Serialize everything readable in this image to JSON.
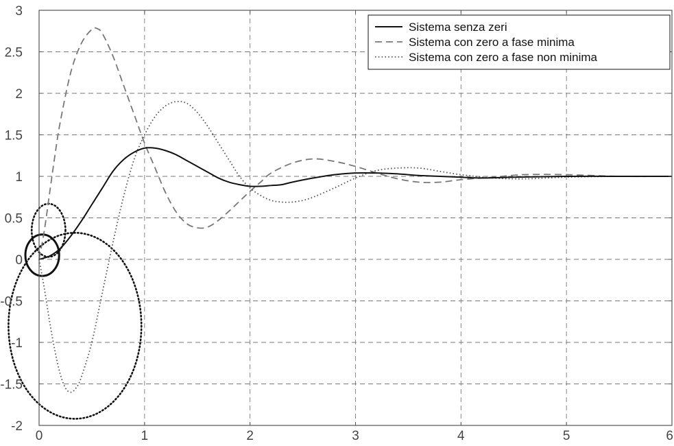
{
  "chart_data": {
    "type": "line",
    "title": "",
    "xlabel": "",
    "ylabel": "",
    "xlim": [
      0,
      6
    ],
    "ylim": [
      -2,
      3
    ],
    "grid": true,
    "legend_position": "top-right",
    "xticks": [
      0,
      1,
      2,
      3,
      4,
      5,
      6
    ],
    "xtick_labels": [
      "0",
      "1",
      "2",
      "3",
      "4",
      "5",
      "6"
    ],
    "yticks": [
      -2,
      -1.5,
      -1,
      -0.5,
      0,
      0.5,
      1,
      1.5,
      2,
      2.5,
      3
    ],
    "ytick_labels": [
      "-2",
      "-1.5",
      "-1",
      "-0.5",
      "0",
      "0.5",
      "1",
      "1.5",
      "2",
      "2.5",
      "3"
    ],
    "series": [
      {
        "name": "Sistema senza zeri",
        "style": "solid",
        "color": "#111111",
        "x": [
          0,
          0.1,
          0.2,
          0.3,
          0.4,
          0.5,
          0.6,
          0.7,
          0.8,
          0.9,
          1.0,
          1.1,
          1.2,
          1.3,
          1.4,
          1.5,
          1.6,
          1.7,
          1.8,
          1.9,
          2.0,
          2.1,
          2.2,
          2.3,
          2.4,
          2.6,
          2.8,
          3.0,
          3.2,
          3.4,
          3.6,
          3.8,
          4.0,
          4.2,
          4.5,
          5.0,
          5.5,
          6.0
        ],
        "y": [
          0,
          0.04,
          0.13,
          0.28,
          0.46,
          0.66,
          0.86,
          1.06,
          1.2,
          1.29,
          1.34,
          1.34,
          1.31,
          1.26,
          1.19,
          1.12,
          1.05,
          0.98,
          0.93,
          0.9,
          0.88,
          0.88,
          0.89,
          0.9,
          0.93,
          0.98,
          1.02,
          1.04,
          1.04,
          1.03,
          1.01,
          1.0,
          0.99,
          0.98,
          0.99,
          1.0,
          1.0,
          1.0
        ]
      },
      {
        "name": "Sistema con zero a fase minima",
        "style": "dashed",
        "color": "#777777",
        "x": [
          0,
          0.05,
          0.1,
          0.15,
          0.2,
          0.3,
          0.4,
          0.5,
          0.55,
          0.6,
          0.7,
          0.8,
          0.9,
          1.0,
          1.1,
          1.2,
          1.3,
          1.4,
          1.5,
          1.6,
          1.7,
          1.8,
          1.9,
          2.0,
          2.1,
          2.2,
          2.4,
          2.6,
          2.8,
          3.0,
          3.2,
          3.4,
          3.6,
          3.8,
          4.0,
          4.3,
          4.6,
          5.0,
          5.5,
          6.0
        ],
        "y": [
          0,
          0.35,
          0.8,
          1.25,
          1.65,
          2.25,
          2.6,
          2.77,
          2.78,
          2.72,
          2.45,
          2.1,
          1.75,
          1.4,
          1.1,
          0.8,
          0.57,
          0.43,
          0.38,
          0.39,
          0.47,
          0.58,
          0.7,
          0.82,
          0.93,
          1.04,
          1.16,
          1.21,
          1.18,
          1.12,
          1.04,
          0.97,
          0.93,
          0.93,
          0.96,
          0.99,
          1.02,
          1.02,
          1.0,
          1.0
        ]
      },
      {
        "name": "Sistema con zero a fase non minima",
        "style": "dotted",
        "color": "#555555",
        "x": [
          0,
          0.05,
          0.1,
          0.15,
          0.2,
          0.25,
          0.3,
          0.35,
          0.4,
          0.5,
          0.6,
          0.7,
          0.8,
          0.9,
          1.0,
          1.1,
          1.2,
          1.3,
          1.4,
          1.5,
          1.6,
          1.7,
          1.8,
          1.9,
          2.0,
          2.1,
          2.2,
          2.3,
          2.4,
          2.5,
          2.6,
          2.8,
          3.0,
          3.2,
          3.4,
          3.6,
          3.8,
          4.0,
          4.3,
          4.6,
          5.0,
          5.5,
          6.0
        ],
        "y": [
          0,
          -0.35,
          -0.75,
          -1.1,
          -1.38,
          -1.55,
          -1.6,
          -1.55,
          -1.42,
          -1.0,
          -0.4,
          0.2,
          0.75,
          1.2,
          1.5,
          1.72,
          1.85,
          1.9,
          1.88,
          1.77,
          1.6,
          1.4,
          1.2,
          1.0,
          0.86,
          0.77,
          0.71,
          0.69,
          0.69,
          0.71,
          0.75,
          0.86,
          0.98,
          1.07,
          1.1,
          1.1,
          1.06,
          1.02,
          0.98,
          0.97,
          0.99,
          1.0,
          1.0
        ]
      }
    ],
    "annotations": [
      {
        "shape": "ellipse",
        "style": "solid",
        "cx": 0.03,
        "cy": 0.05,
        "rx": 0.16,
        "ry": 0.25
      },
      {
        "shape": "ellipse",
        "style": "dotted",
        "cx": 0.09,
        "cy": 0.35,
        "rx": 0.16,
        "ry": 0.32
      },
      {
        "shape": "ellipse",
        "style": "dotted",
        "cx": 0.34,
        "cy": -0.8,
        "rx": 0.63,
        "ry": 1.12
      }
    ]
  }
}
